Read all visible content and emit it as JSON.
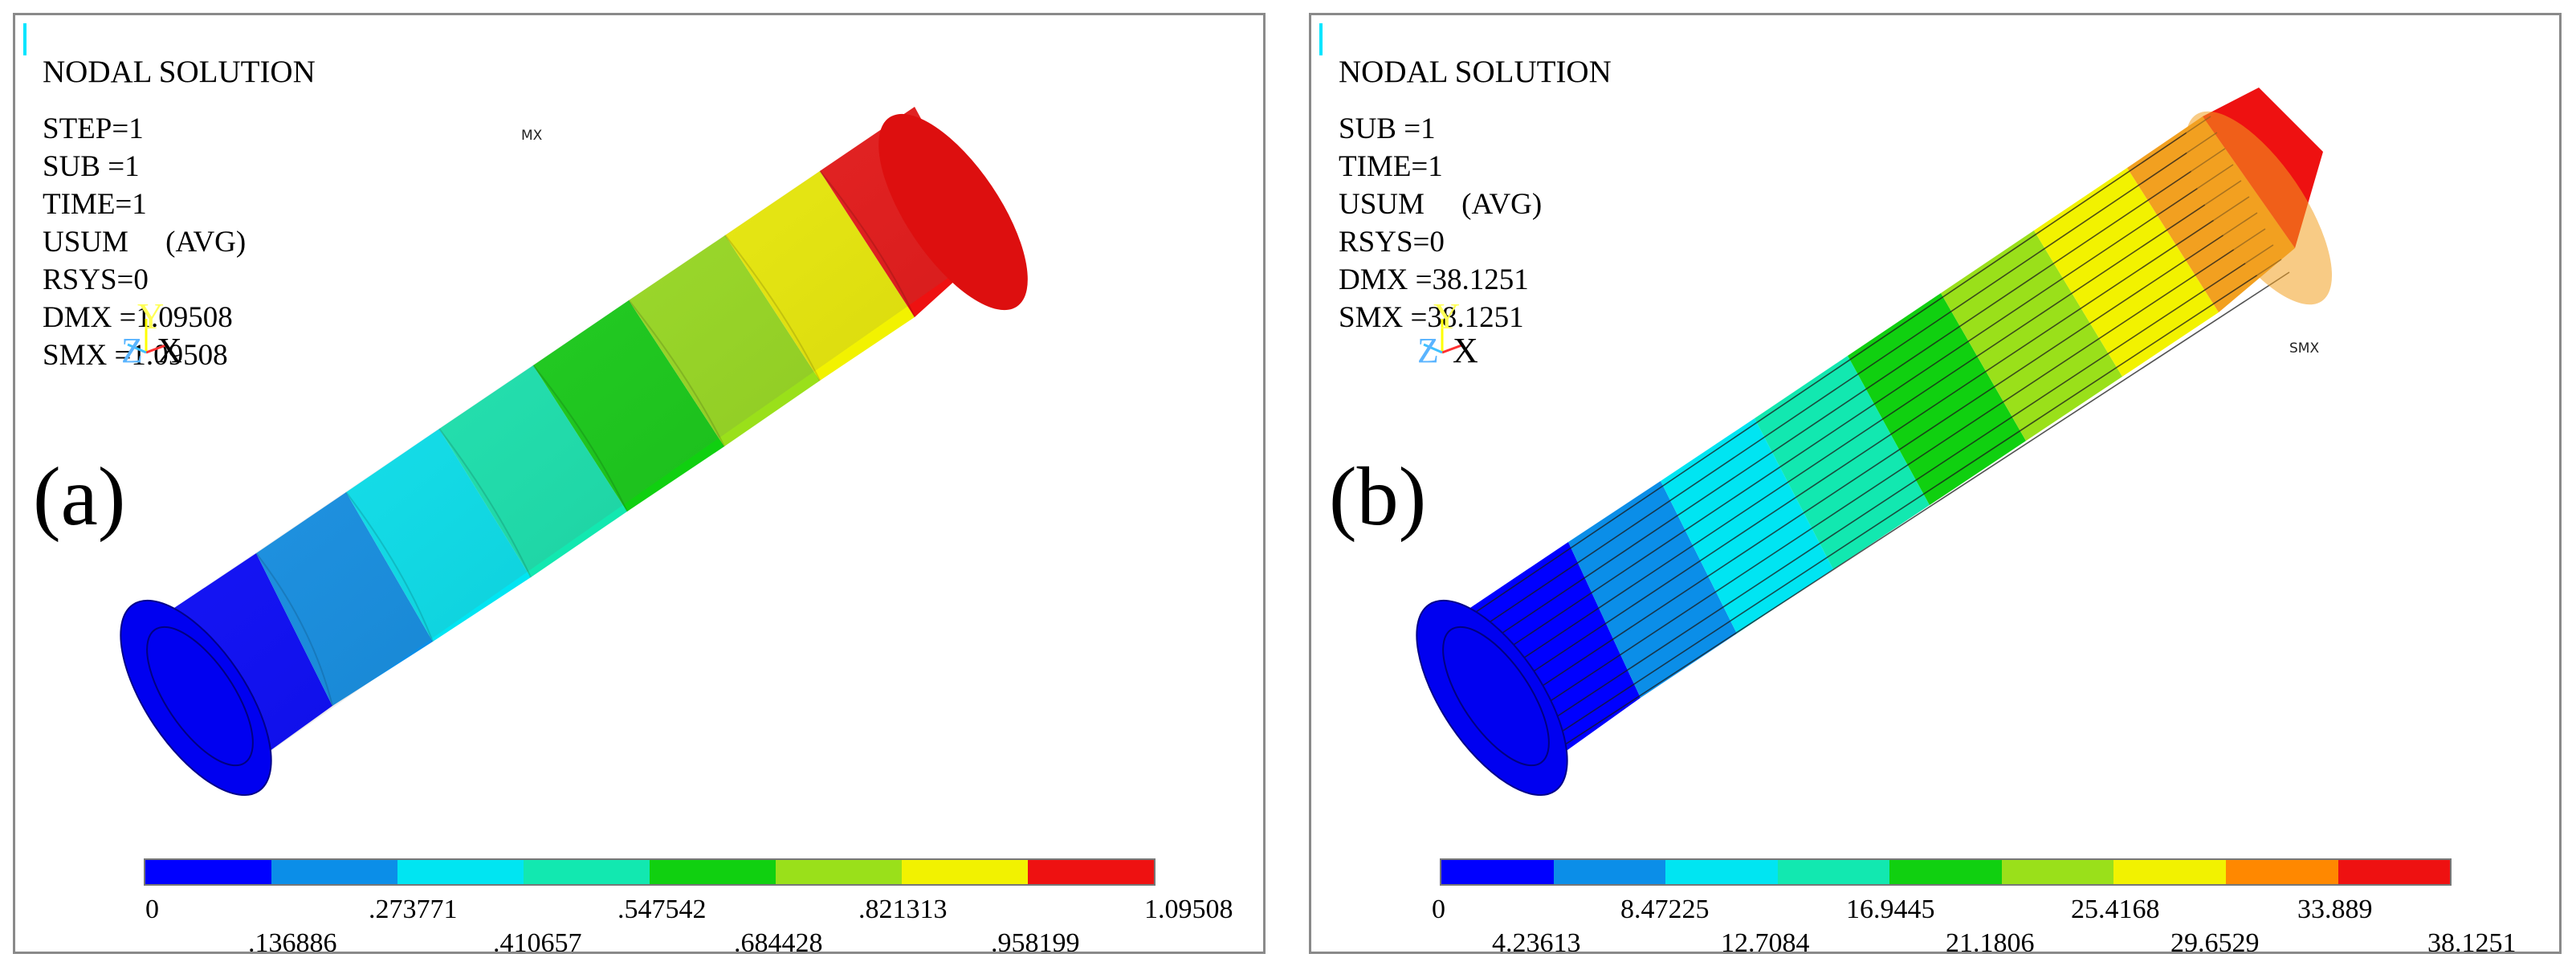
{
  "panels": [
    {
      "title": "NODAL SOLUTION",
      "params": [
        "STEP=1",
        "SUB =1",
        "TIME=1",
        "USUM     (AVG)",
        "RSYS=0",
        "DMX =1.09508",
        "SMX =1.09508"
      ],
      "label": "(a)",
      "max_marker": "MX",
      "axes": {
        "y": "Y",
        "z": "Z",
        "x": "X"
      },
      "legend": {
        "colors": [
          "#0000ff",
          "#0b8ee8",
          "#00e5f2",
          "#12e8b0",
          "#10d010",
          "#9ae01a",
          "#f2f200",
          "#ff8800",
          "#ee1111"
        ],
        "labels_top": [
          "0",
          ".273771",
          ".547542",
          ".821313",
          "1.09508"
        ],
        "labels_bottom": [
          ".136886",
          ".410657",
          ".684428",
          ".958199"
        ]
      }
    },
    {
      "title": "NODAL SOLUTION",
      "params": [
        "SUB =1",
        "TIME=1",
        "USUM     (AVG)",
        "RSYS=0",
        "DMX =38.1251",
        "SMX =38.1251"
      ],
      "label": "(b)",
      "max_marker": "SMX",
      "axes": {
        "y": "Y",
        "z": "Z",
        "x": "X"
      },
      "legend": {
        "colors": [
          "#0000ff",
          "#0b8ee8",
          "#00e5f2",
          "#12e8b0",
          "#10d010",
          "#9ae01a",
          "#f2f200",
          "#ff8800",
          "#ee1111"
        ],
        "labels_top": [
          "0",
          "8.47225",
          "16.9445",
          "25.4168",
          "33.889"
        ],
        "labels_bottom": [
          "4.23613",
          "12.7084",
          "21.1806",
          "29.6529",
          "38.1251"
        ]
      }
    }
  ]
}
